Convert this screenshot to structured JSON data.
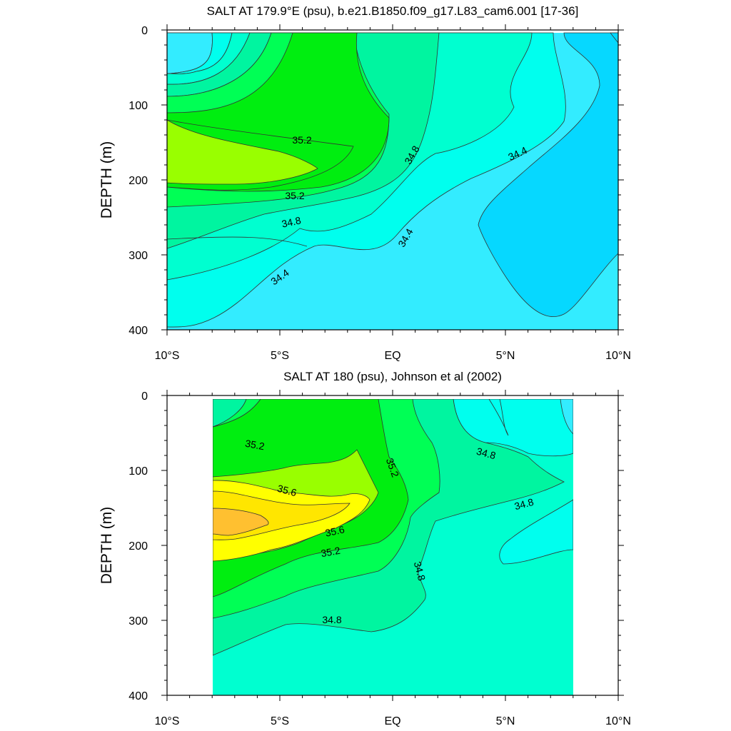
{
  "chart_data": [
    {
      "type": "contour",
      "title": "SALT AT 179.9°E (psu), b.e21.B1850.f09_g17.L83_cam6.001 [17-36]",
      "ylabel": "DEPTH (m)",
      "xlim": [
        -10,
        10
      ],
      "ylim": [
        0,
        400
      ],
      "y_inverted": true,
      "x_ticks": [
        "10°S",
        "5°S",
        "EQ",
        "5°N",
        "10°N"
      ],
      "y_ticks": [
        "0",
        "100",
        "200",
        "300",
        "400"
      ],
      "data_extent_lat": [
        -10,
        10
      ],
      "data_extent_depth": [
        5,
        400
      ],
      "contour_labels": [
        "35.2",
        "35.2",
        "34.8",
        "34.8",
        "34.4",
        "34.4",
        "34.4"
      ],
      "colors": {
        "34.0-34.2": "#06d8ff",
        "34.2-34.4": "#33ecff",
        "34.4-34.6": "#00ffee",
        "34.6-34.8": "#00ffd0",
        "34.8-35.0": "#00f5a0",
        "35.0-35.2": "#00ff55",
        "35.2-35.4": "#00ee10",
        "35.4-35.6": "#99ff00"
      }
    },
    {
      "type": "contour",
      "title": "SALT AT 180 (psu), Johnson et al (2002)",
      "ylabel": "DEPTH (m)",
      "xlim": [
        -10,
        10
      ],
      "ylim": [
        0,
        400
      ],
      "y_inverted": true,
      "x_ticks": [
        "10°S",
        "5°S",
        "EQ",
        "5°N",
        "10°N"
      ],
      "y_ticks": [
        "0",
        "100",
        "200",
        "300",
        "400"
      ],
      "data_extent_lat": [
        -8,
        8
      ],
      "data_extent_depth": [
        5,
        400
      ],
      "contour_labels": [
        "35.2",
        "35.6",
        "35.6",
        "35.2",
        "35.2",
        "34.8",
        "34.8",
        "34.8",
        "34.8"
      ],
      "colors": {
        "34.4-34.6": "#00ffee",
        "34.6-34.8": "#00ffd0",
        "34.8-35.0": "#00f5a0",
        "35.0-35.2": "#00ff55",
        "35.2-35.4": "#00ee10",
        "35.4-35.6": "#99ff00",
        "35.6-35.8": "#ffff00",
        "35.8-36.0": "#ffe600",
        "36.0-36.2": "#ffc030"
      }
    }
  ]
}
